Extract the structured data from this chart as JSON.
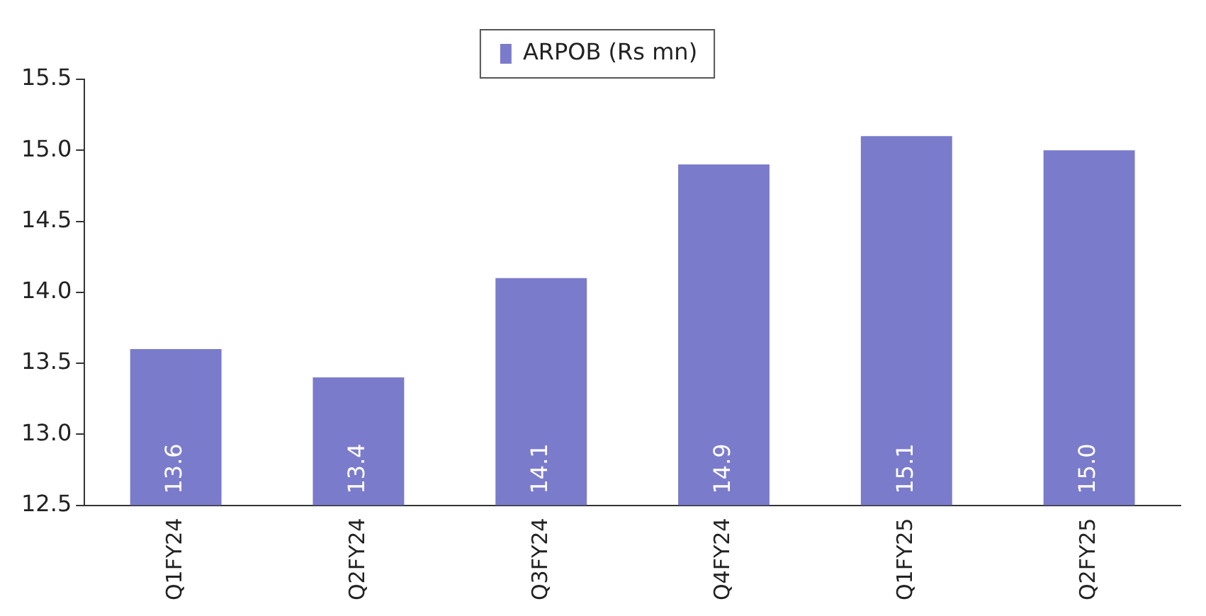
{
  "chart_data": {
    "type": "bar",
    "categories": [
      "Q1FY24",
      "Q2FY24",
      "Q3FY24",
      "Q4FY24",
      "Q1FY25",
      "Q2FY25"
    ],
    "series": [
      {
        "name": "ARPOB (Rs mn)",
        "color": "#7b7bcc",
        "values": [
          13.6,
          13.4,
          14.1,
          14.9,
          15.1,
          15.0
        ],
        "value_labels": [
          "13.6",
          "13.4",
          "14.1",
          "14.9",
          "15.1",
          "15.0"
        ]
      }
    ],
    "ylim": [
      12.5,
      15.5
    ],
    "yticks": [
      {
        "value": 12.5,
        "label": "12.5"
      },
      {
        "value": 13,
        "label": "13.0"
      },
      {
        "value": 13.5,
        "label": "13.5"
      },
      {
        "value": 14,
        "label": "14.0"
      },
      {
        "value": 14.5,
        "label": "14.5"
      },
      {
        "value": 15,
        "label": "15.0"
      },
      {
        "value": 15.5,
        "label": "15.5"
      }
    ],
    "grid": false,
    "legend": "top"
  }
}
